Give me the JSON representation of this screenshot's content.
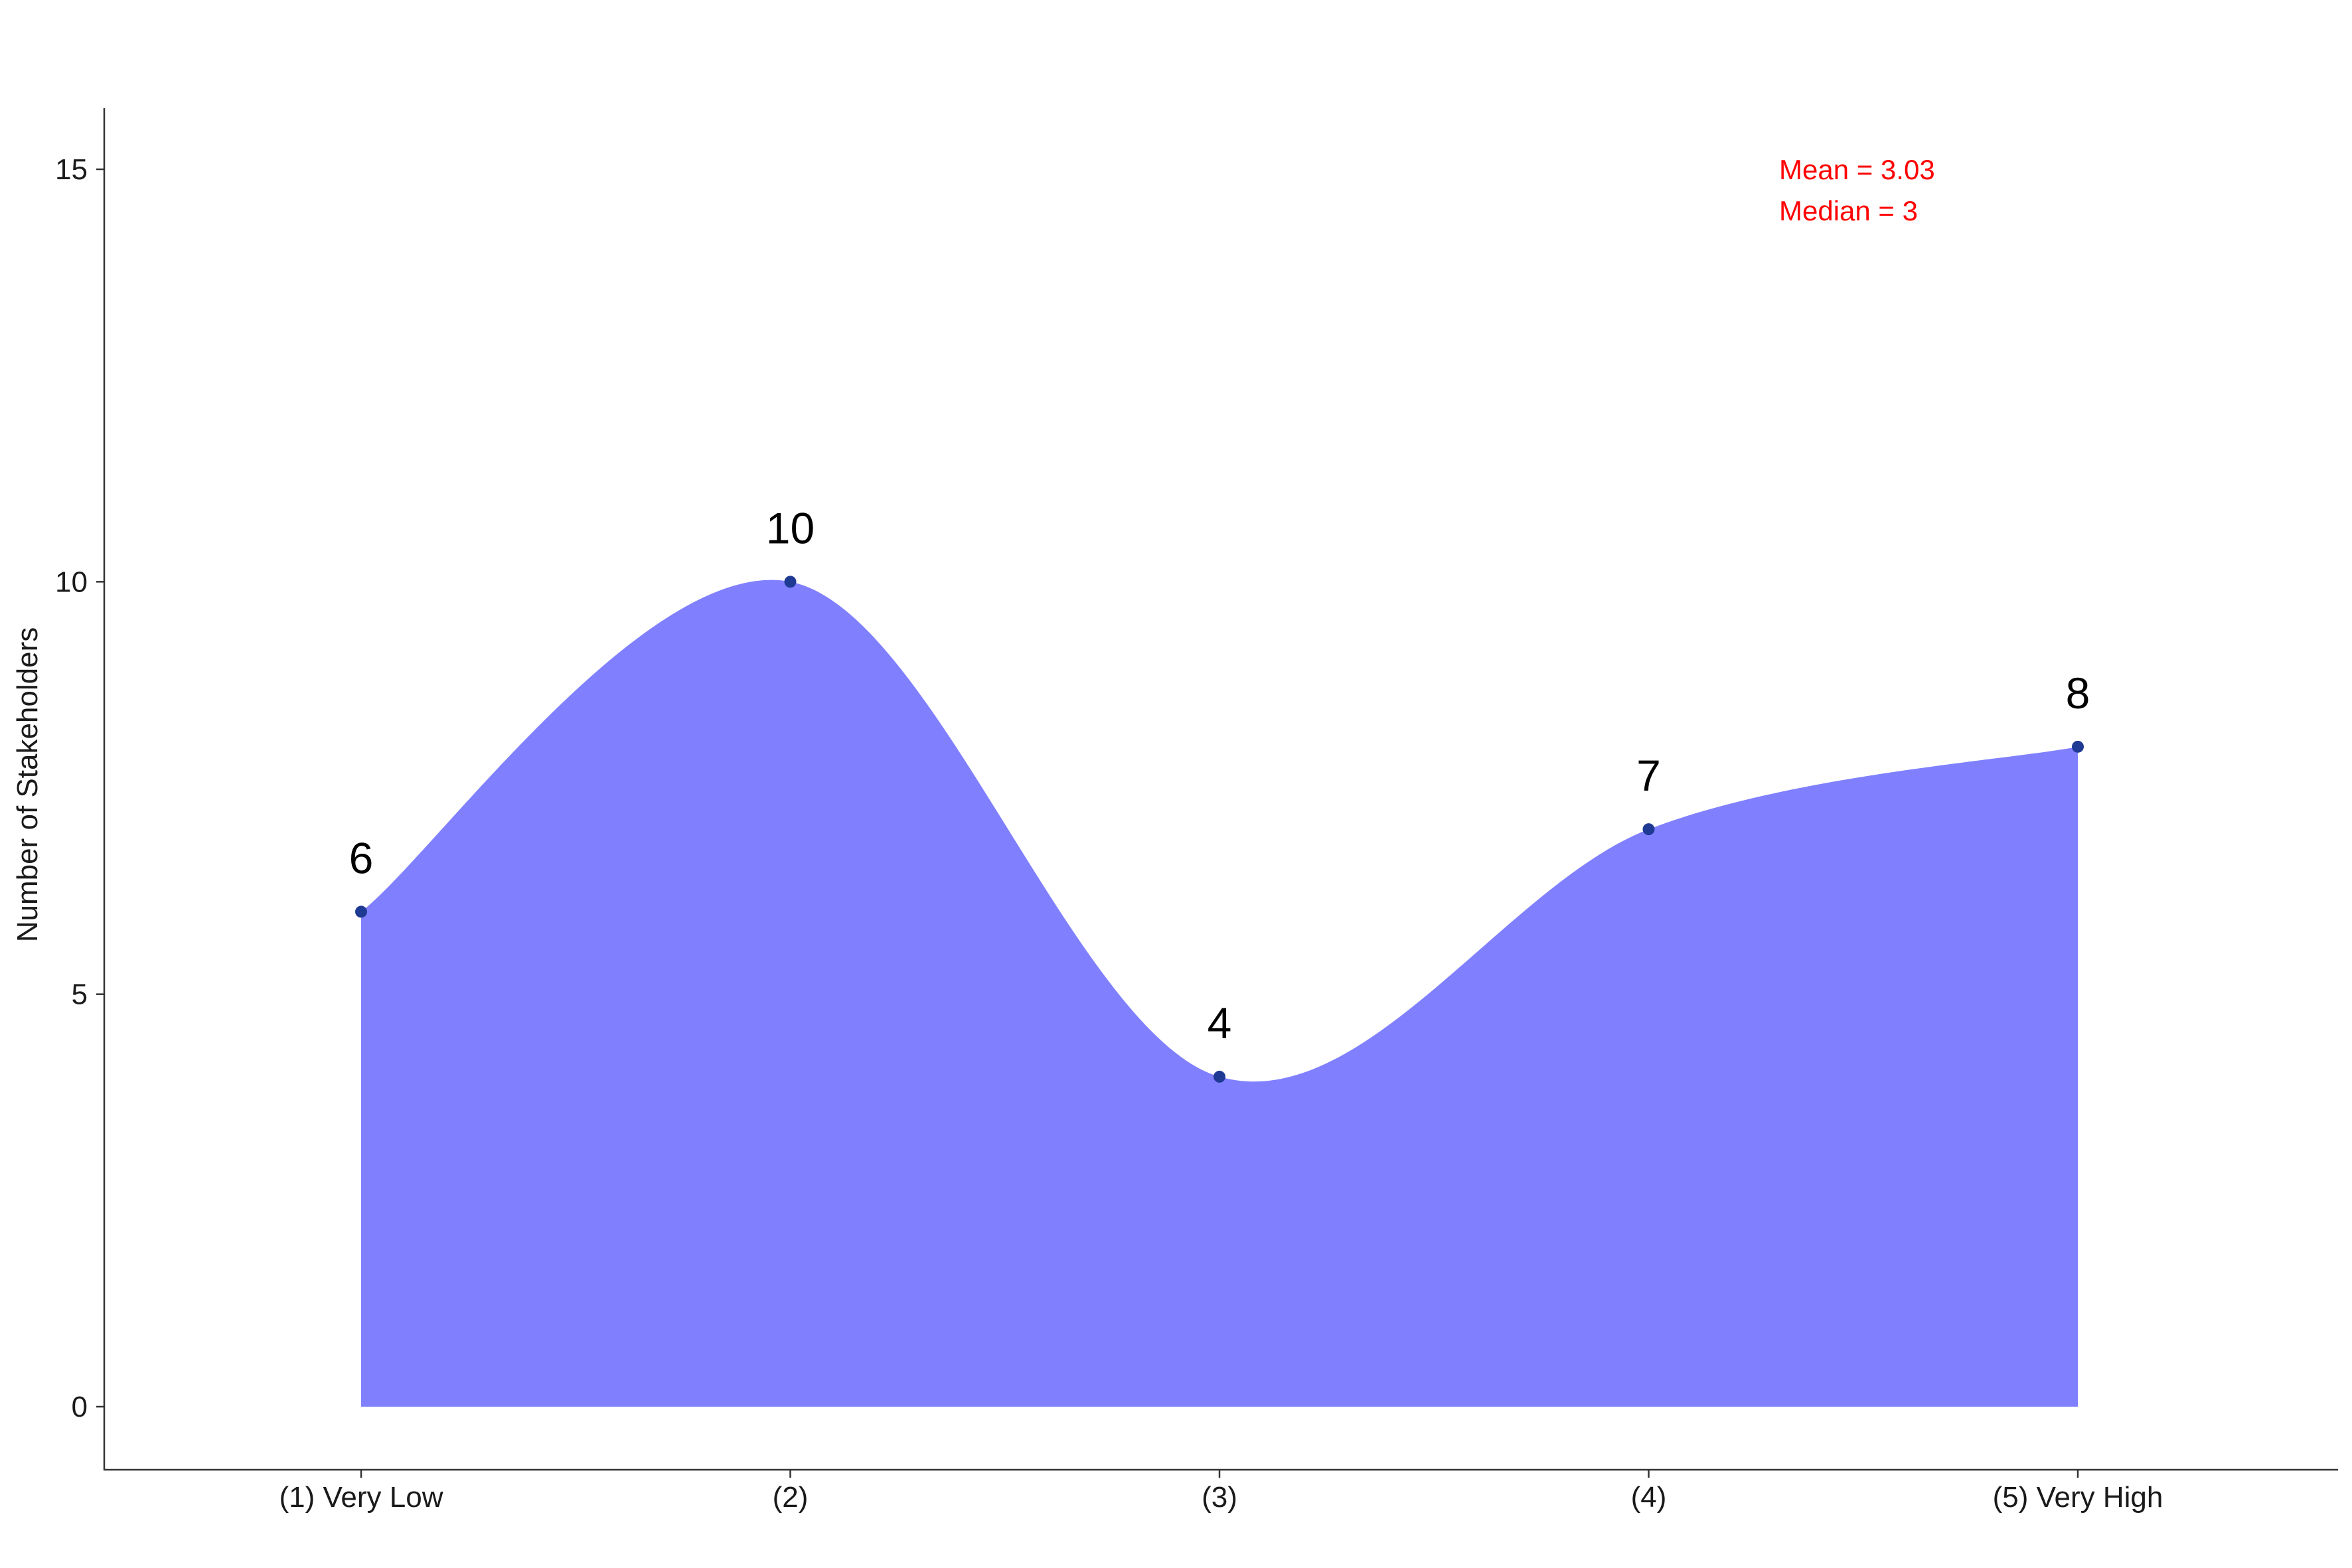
{
  "chart_data": {
    "type": "area",
    "title": "",
    "xlabel": "",
    "ylabel": "Number of Stakeholders",
    "categories": [
      "(1) Very Low",
      "(2)",
      "(3)",
      "(4)",
      "(5) Very High"
    ],
    "values": [
      6,
      10,
      4,
      7,
      8
    ],
    "data_labels": [
      "6",
      "10",
      "4",
      "7",
      "8"
    ],
    "ylim": [
      0,
      15
    ],
    "y_ticks": [
      0,
      5,
      10,
      15
    ],
    "y_tick_labels": [
      "0",
      "5",
      "10",
      "15"
    ],
    "grid": false,
    "legend": "none",
    "smoothed": true,
    "annotations": {
      "mean": "Mean = 3.03",
      "median": "Median = 3",
      "placement": "top-right"
    },
    "colors": {
      "fill": "#8080ff",
      "point": "#1f3a93",
      "annotation": "#ff0000"
    }
  }
}
